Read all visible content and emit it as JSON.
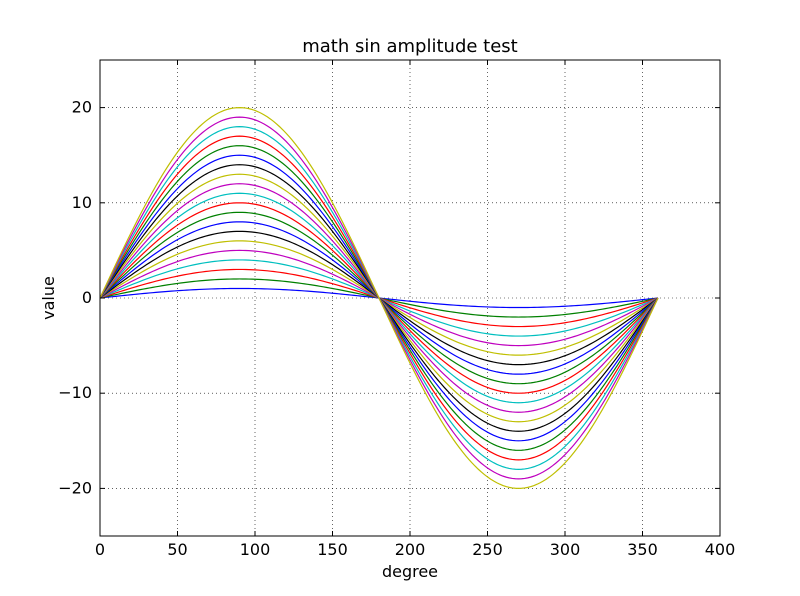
{
  "chart_data": {
    "type": "line",
    "title": "math sin amplitude test",
    "xlabel": "degree",
    "ylabel": "value",
    "xlim": [
      0,
      400
    ],
    "ylim": [
      -25,
      25
    ],
    "xticks": [
      0,
      50,
      100,
      150,
      200,
      250,
      300,
      350,
      400
    ],
    "yticks": [
      -20,
      -10,
      0,
      10,
      20
    ],
    "xtick_labels": [
      "0",
      "50",
      "100",
      "150",
      "200",
      "250",
      "300",
      "350",
      "400"
    ],
    "ytick_labels": [
      "−20",
      "−10",
      "0",
      "10",
      "20"
    ],
    "grid": true,
    "function": "amplitude * sin(degree)",
    "x_range": [
      0,
      360
    ],
    "series": [
      {
        "amplitude": 1,
        "color": "#0000ff"
      },
      {
        "amplitude": 2,
        "color": "#008000"
      },
      {
        "amplitude": 3,
        "color": "#ff0000"
      },
      {
        "amplitude": 4,
        "color": "#00bfbf"
      },
      {
        "amplitude": 5,
        "color": "#bf00bf"
      },
      {
        "amplitude": 6,
        "color": "#bfbf00"
      },
      {
        "amplitude": 7,
        "color": "#000000"
      },
      {
        "amplitude": 8,
        "color": "#0000ff"
      },
      {
        "amplitude": 9,
        "color": "#008000"
      },
      {
        "amplitude": 10,
        "color": "#ff0000"
      },
      {
        "amplitude": 11,
        "color": "#00bfbf"
      },
      {
        "amplitude": 12,
        "color": "#bf00bf"
      },
      {
        "amplitude": 13,
        "color": "#bfbf00"
      },
      {
        "amplitude": 14,
        "color": "#000000"
      },
      {
        "amplitude": 15,
        "color": "#0000ff"
      },
      {
        "amplitude": 16,
        "color": "#008000"
      },
      {
        "amplitude": 17,
        "color": "#ff0000"
      },
      {
        "amplitude": 18,
        "color": "#00bfbf"
      },
      {
        "amplitude": 19,
        "color": "#bf00bf"
      },
      {
        "amplitude": 20,
        "color": "#bfbf00"
      }
    ]
  }
}
